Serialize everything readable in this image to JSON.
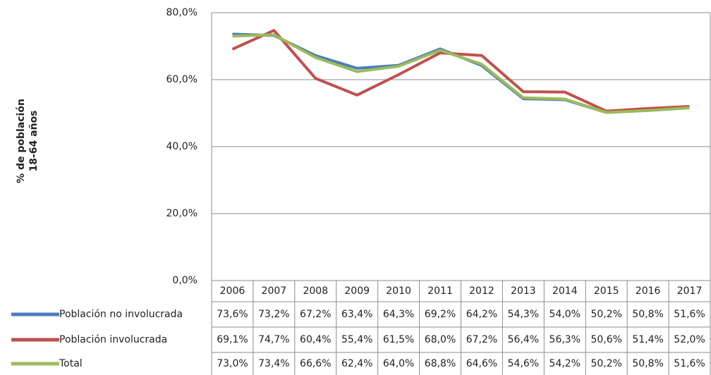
{
  "chart_data": {
    "type": "line",
    "y_label": [
      "% de población",
      "18-64 años"
    ],
    "categories": [
      "2006",
      "2007",
      "2008",
      "2009",
      "2010",
      "2011",
      "2012",
      "2013",
      "2014",
      "2015",
      "2016",
      "2017"
    ],
    "series": [
      {
        "name": "Población no involucrada",
        "color": "#4a7ebb",
        "values": [
          73.6,
          73.2,
          67.2,
          63.4,
          64.3,
          69.2,
          64.2,
          54.3,
          54.0,
          50.2,
          50.8,
          51.6
        ],
        "value_labels": [
          "73,6%",
          "73,2%",
          "67,2%",
          "63,4%",
          "64,3%",
          "69,2%",
          "64,2%",
          "54,3%",
          "54,0%",
          "50,2%",
          "50,8%",
          "51,6%"
        ]
      },
      {
        "name": "Población involucrada",
        "color": "#c0504d",
        "values": [
          69.1,
          74.7,
          60.4,
          55.4,
          61.5,
          68.0,
          67.2,
          56.4,
          56.3,
          50.6,
          51.4,
          52.0
        ],
        "value_labels": [
          "69,1%",
          "74,7%",
          "60,4%",
          "55,4%",
          "61,5%",
          "68,0%",
          "67,2%",
          "56,4%",
          "56,3%",
          "50,6%",
          "51,4%",
          "52,0%"
        ]
      },
      {
        "name": "Total",
        "color": "#9bbb59",
        "values": [
          73.0,
          73.4,
          66.6,
          62.4,
          64.0,
          68.8,
          64.6,
          54.6,
          54.2,
          50.2,
          50.8,
          51.6
        ],
        "value_labels": [
          "73,0%",
          "73,4%",
          "66,6%",
          "62,4%",
          "64,0%",
          "68,8%",
          "64,6%",
          "54,6%",
          "54,2%",
          "50,2%",
          "50,8%",
          "51,6%"
        ]
      }
    ],
    "ylim": [
      0,
      80
    ],
    "yticks": [
      {
        "value": 0,
        "label": "0,0%"
      },
      {
        "value": 20,
        "label": "20,0%"
      },
      {
        "value": 40,
        "label": "40,0%"
      },
      {
        "value": 60,
        "label": "60,0%"
      },
      {
        "value": 80,
        "label": "80,0%"
      }
    ],
    "grid": true
  }
}
